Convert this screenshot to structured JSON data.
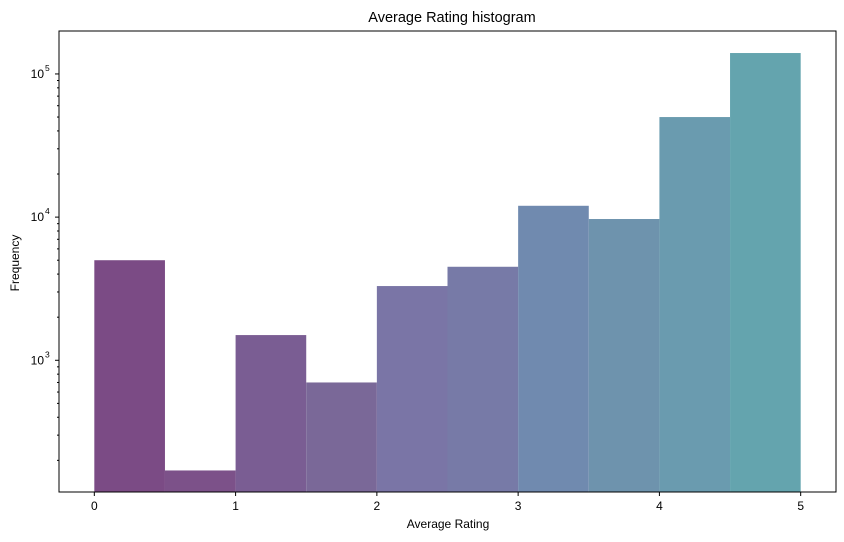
{
  "chart_data": {
    "type": "bar",
    "title": "Average Rating histogram",
    "xlabel": "Average Rating",
    "ylabel": "Frequency",
    "yscale": "log",
    "xlim": [
      -0.25,
      5.25
    ],
    "ylim_log10": [
      2.08,
      5.3
    ],
    "grid": false,
    "x_ticks": [
      0,
      1,
      2,
      3,
      4,
      5
    ],
    "y_ticks": [
      {
        "base": "10",
        "exp": "3",
        "value": 1000
      },
      {
        "base": "10",
        "exp": "4",
        "value": 10000
      },
      {
        "base": "10",
        "exp": "5",
        "value": 100000
      }
    ],
    "bins": [
      {
        "x0": 0.0,
        "x1": 0.5,
        "value": 5000,
        "color": "#7b4b85"
      },
      {
        "x0": 0.5,
        "x1": 1.0,
        "value": 170,
        "color": "#7c5189"
      },
      {
        "x0": 1.0,
        "x1": 1.5,
        "value": 1500,
        "color": "#7a5d93"
      },
      {
        "x0": 1.5,
        "x1": 2.0,
        "value": 700,
        "color": "#7a6898"
      },
      {
        "x0": 2.0,
        "x1": 2.5,
        "value": 3300,
        "color": "#7a75a6"
      },
      {
        "x0": 2.5,
        "x1": 3.0,
        "value": 4500,
        "color": "#777aa7"
      },
      {
        "x0": 3.0,
        "x1": 3.5,
        "value": 12000,
        "color": "#708aaf"
      },
      {
        "x0": 3.5,
        "x1": 4.0,
        "value": 9700,
        "color": "#6e93ad"
      },
      {
        "x0": 4.0,
        "x1": 4.5,
        "value": 50000,
        "color": "#6a9baf"
      },
      {
        "x0": 4.5,
        "x1": 5.0,
        "value": 140000,
        "color": "#64a4ae"
      }
    ]
  }
}
